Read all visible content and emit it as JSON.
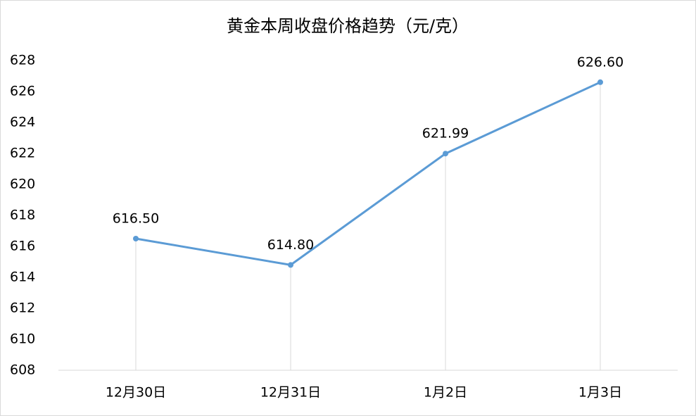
{
  "chart_data": {
    "type": "line",
    "title": "黄金本周收盘价格趋势（元/克）",
    "categories": [
      "12月30日",
      "12月31日",
      "1月2日",
      "1月3日"
    ],
    "series": [
      {
        "name": "收盘价格",
        "color": "#5b9bd5",
        "values": [
          616.5,
          614.8,
          621.99,
          626.6
        ],
        "value_labels": [
          "616.50",
          "614.80",
          "621.99",
          "626.60"
        ]
      }
    ],
    "ylim": [
      608,
      628
    ],
    "yticks": [
      608,
      610,
      612,
      614,
      616,
      618,
      620,
      622,
      624,
      626,
      628
    ],
    "drop_lines": true,
    "grid": false
  }
}
